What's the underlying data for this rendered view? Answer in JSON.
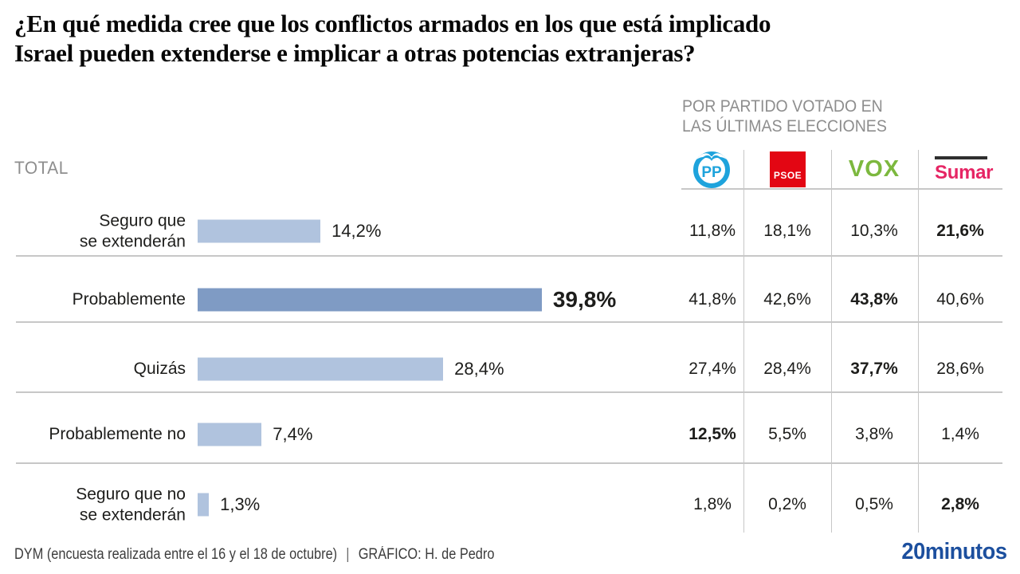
{
  "title": "¿En qué medida cree que los conflictos armados en los que está implicado\nIsrael pueden extenderse e implicar a otras potencias extranjeras?",
  "table_header": "POR PARTIDO VOTADO EN\nLAS ÚLTIMAS ELECCIONES",
  "total_label": "TOTAL",
  "parties": [
    {
      "name": "PP",
      "color": "#1ea3dc"
    },
    {
      "name": "PSOE",
      "color": "#e30613"
    },
    {
      "name": "VOX",
      "color": "#7cb83e"
    },
    {
      "name": "Sumar",
      "color": "#e62564"
    }
  ],
  "chart_data": {
    "type": "bar",
    "orientation": "horizontal",
    "value_unit": "%",
    "decimal_separator": ",",
    "title": "¿En qué medida cree que los conflictos armados en los que está implicado Israel pueden extenderse e implicar a otras potencias extranjeras?",
    "categories": [
      "Seguro que se extenderán",
      "Probablemente",
      "Quizás",
      "Probablemente no",
      "Seguro que no se extenderán"
    ],
    "total_series_name": "TOTAL",
    "total_values": [
      14.2,
      39.8,
      28.4,
      7.4,
      1.3
    ],
    "xlim": [
      0,
      45
    ],
    "grid": false,
    "legend_position": "top-right-as-table-columns",
    "series": [
      {
        "name": "PP",
        "values": [
          11.8,
          41.8,
          27.4,
          12.5,
          1.8
        ]
      },
      {
        "name": "PSOE",
        "values": [
          18.1,
          42.6,
          28.4,
          5.5,
          0.2
        ]
      },
      {
        "name": "VOX",
        "values": [
          10.3,
          43.8,
          37.7,
          3.8,
          0.5
        ]
      },
      {
        "name": "Sumar",
        "values": [
          21.6,
          40.6,
          28.6,
          1.4,
          2.8
        ]
      }
    ],
    "rows": [
      {
        "label": "Seguro que\nse extenderán",
        "total_value": 14.2,
        "total_label": "14,2%",
        "highlight": false,
        "cells": [
          {
            "text": "11,8%",
            "bold": false
          },
          {
            "text": "18,1%",
            "bold": false
          },
          {
            "text": "10,3%",
            "bold": false
          },
          {
            "text": "21,6%",
            "bold": true
          }
        ]
      },
      {
        "label": "Probablemente",
        "total_value": 39.8,
        "total_label": "39,8%",
        "highlight": true,
        "cells": [
          {
            "text": "41,8%",
            "bold": false
          },
          {
            "text": "42,6%",
            "bold": false
          },
          {
            "text": "43,8%",
            "bold": true
          },
          {
            "text": "40,6%",
            "bold": false
          }
        ]
      },
      {
        "label": "Quizás",
        "total_value": 28.4,
        "total_label": "28,4%",
        "highlight": false,
        "cells": [
          {
            "text": "27,4%",
            "bold": false
          },
          {
            "text": "28,4%",
            "bold": false
          },
          {
            "text": "37,7%",
            "bold": true
          },
          {
            "text": "28,6%",
            "bold": false
          }
        ]
      },
      {
        "label": "Probablemente no",
        "total_value": 7.4,
        "total_label": "7,4%",
        "highlight": false,
        "cells": [
          {
            "text": "12,5%",
            "bold": true
          },
          {
            "text": "5,5%",
            "bold": false
          },
          {
            "text": "3,8%",
            "bold": false
          },
          {
            "text": "1,4%",
            "bold": false
          }
        ]
      },
      {
        "label": "Seguro que no\nse extenderán",
        "total_value": 1.3,
        "total_label": "1,3%",
        "highlight": false,
        "cells": [
          {
            "text": "1,8%",
            "bold": false
          },
          {
            "text": "0,2%",
            "bold": false
          },
          {
            "text": "0,5%",
            "bold": false
          },
          {
            "text": "2,8%",
            "bold": true
          }
        ]
      }
    ]
  },
  "footer": {
    "source": "DYM (encuesta realizada entre el 16 y el 18 de octubre)",
    "separator": "|",
    "credit": "GRÁFICO: H. de Pedro",
    "brand": "20minutos"
  },
  "colors": {
    "bar_light": "#b0c3de",
    "bar_dark": "#7f9bc4",
    "line": "#c7c7c7",
    "text_gray": "#8e8e8e",
    "text_dark": "#1d1d1b",
    "pp_blue": "#1ea3dc",
    "psoe_red": "#e30613",
    "vox_green": "#7cb83e",
    "sumar_magenta": "#e62564",
    "sumar_bar": "#2f2f2f",
    "brand_blue": "#1c4f9e"
  }
}
